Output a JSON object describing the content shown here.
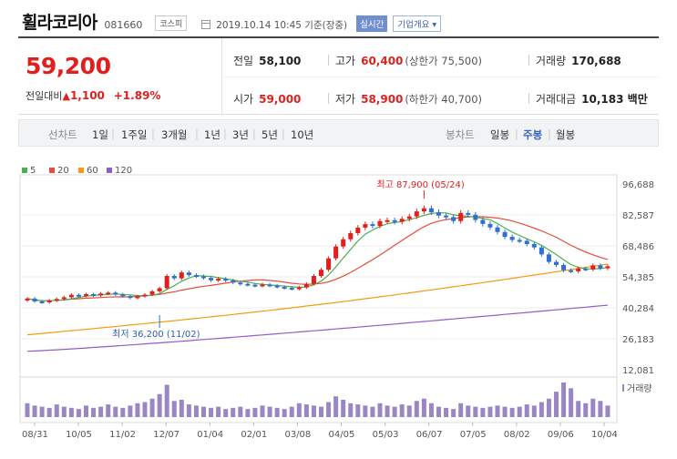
{
  "header": {
    "name": "휠라코리아",
    "code": "081660",
    "market": "코스피",
    "datetime": "2019.10.14 10:45 기준(장중)",
    "realtime": "실시간",
    "company_info": "기업개요 ▾"
  },
  "quote": {
    "price": "59,200",
    "change_label": "전일대비",
    "change_arrow": "▲",
    "change": "1,100",
    "change_pct": "+1.89%",
    "prev_close_label": "전일",
    "prev_close": "58,100",
    "high_label": "고가",
    "high": "60,400",
    "upper_limit": "(상한가 75,500)",
    "volume_label": "거래량",
    "volume": "170,688",
    "open_label": "시가",
    "open": "59,000",
    "low_label": "저가",
    "low": "58,900",
    "lower_limit": "(하한가 40,700)",
    "amount_label": "거래대금",
    "amount": "10,183 백만"
  },
  "periods": {
    "line_title": "선차트",
    "line_items": [
      "1일",
      "1주일",
      "3개월",
      "1년",
      "3년",
      "5년",
      "10년"
    ],
    "candle_title": "봉차트",
    "candle_items": [
      "일봉",
      "주봉",
      "월봉"
    ],
    "candle_selected": "주봉"
  },
  "colors": {
    "up": "#e0201f",
    "down": "#2f6fd0",
    "ma5": "#4caf50",
    "ma20": "#e74c3c",
    "ma60": "#f39c12",
    "ma120": "#8e5fc6",
    "volume": "#9a86c4"
  },
  "chart_data": {
    "type": "candlestick",
    "legend": [
      "5",
      "20",
      "60",
      "120"
    ],
    "y_ticks": [
      "96,688",
      "82,587",
      "68,486",
      "54,385",
      "40,284",
      "26,183",
      "12,081"
    ],
    "ylim": [
      12081,
      96688
    ],
    "x_ticks": [
      "08/31",
      "10/05",
      "11/02",
      "12/07",
      "01/04",
      "02/01",
      "03/08",
      "04/05",
      "05/03",
      "06/07",
      "07/05",
      "08/02",
      "09/06",
      "10/04"
    ],
    "high_label": "최고 87,900 (05/24)",
    "low_label": "최저 36,200 (11/02)",
    "high_value": 87900,
    "low_value": 36200,
    "volume_label": "거래량",
    "closes": [
      44500,
      43200,
      42800,
      43600,
      44300,
      45100,
      46200,
      45800,
      46500,
      45900,
      46800,
      47200,
      46400,
      45600,
      44800,
      45500,
      46300,
      47800,
      49200,
      54800,
      53700,
      56400,
      55200,
      54600,
      53900,
      52800,
      53500,
      52700,
      51800,
      51200,
      50800,
      50300,
      50900,
      50400,
      49800,
      49400,
      48900,
      49600,
      51200,
      54800,
      57600,
      62800,
      68200,
      71500,
      74300,
      76800,
      78400,
      77600,
      79800,
      80200,
      79500,
      80800,
      81900,
      84200,
      85600,
      83800,
      82300,
      81600,
      79800,
      83500,
      82700,
      80300,
      78500,
      76900,
      74800,
      72600,
      71200,
      70800,
      69300,
      67800,
      64600,
      61200,
      59800,
      57400,
      56900,
      58200,
      57800,
      59600,
      58300,
      59200
    ],
    "volumes": [
      12,
      10,
      9,
      8,
      11,
      9,
      8,
      7,
      10,
      8,
      9,
      11,
      9,
      8,
      10,
      12,
      13,
      16,
      20,
      28,
      14,
      15,
      11,
      10,
      9,
      8,
      9,
      7,
      8,
      9,
      7,
      8,
      10,
      9,
      8,
      7,
      9,
      12,
      11,
      10,
      9,
      13,
      18,
      15,
      12,
      11,
      10,
      9,
      12,
      10,
      9,
      11,
      10,
      14,
      16,
      12,
      9,
      8,
      7,
      12,
      10,
      9,
      8,
      9,
      10,
      9,
      8,
      9,
      11,
      10,
      13,
      16,
      22,
      30,
      25,
      14,
      12,
      16,
      14,
      10
    ],
    "ma20_end": 66500,
    "ma60_end": 60200,
    "ma120_end": 41500
  }
}
